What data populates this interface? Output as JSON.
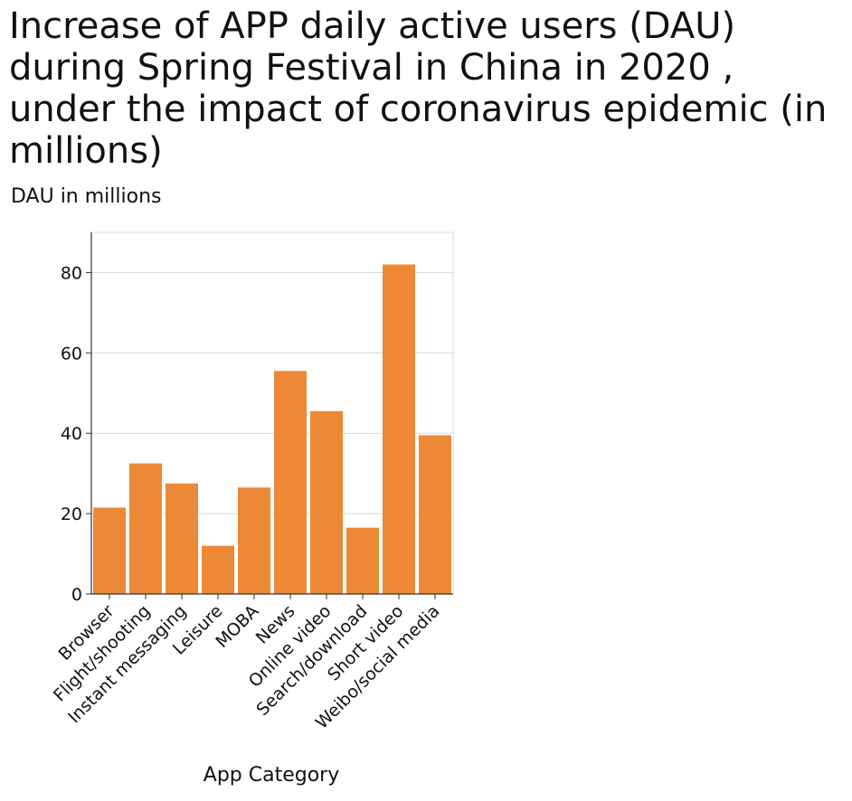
{
  "chart_data": {
    "type": "bar",
    "title": "Increase of APP daily active users (DAU) during Spring Festival in China in 2020 , under the impact of coronavirus epidemic (in millions)",
    "xlabel": "App Category",
    "ylabel": "DAU in millions",
    "categories": [
      "Browser",
      "Flight/shooting",
      "Instant messaging",
      "Leisure",
      "MOBA",
      "News",
      "Online video",
      "Search/download",
      "Short video",
      "Weibo/social media"
    ],
    "values": [
      21.5,
      32.5,
      27.5,
      12.0,
      26.5,
      55.5,
      45.5,
      16.5,
      82.0,
      39.5
    ],
    "ylim": [
      0,
      90
    ],
    "yticks": [
      0,
      20,
      40,
      60,
      80
    ],
    "grid": true,
    "bar_color": "#ed8936"
  }
}
